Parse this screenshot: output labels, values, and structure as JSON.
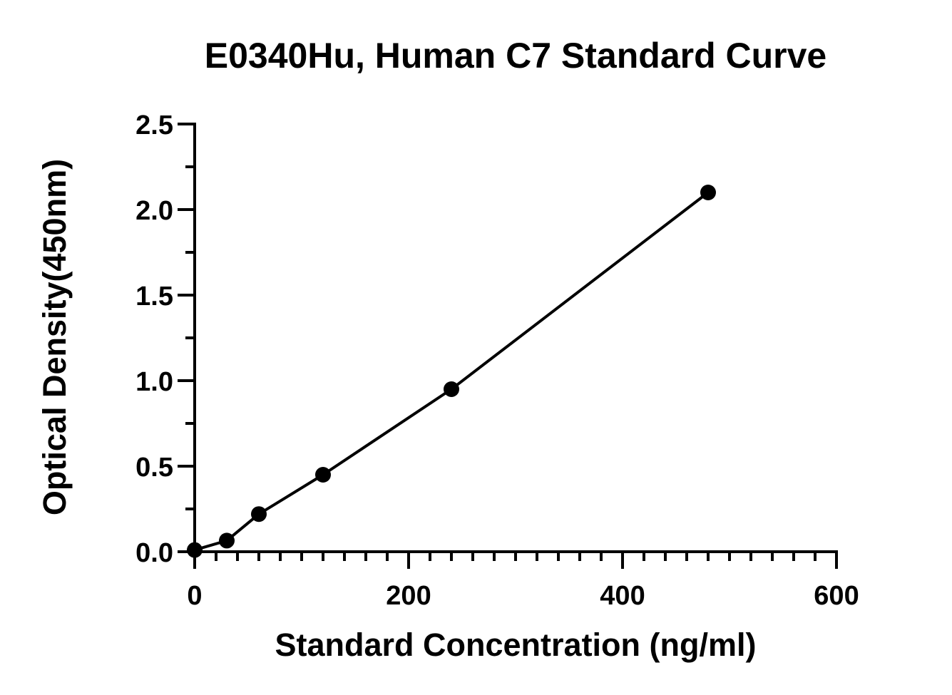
{
  "chart_data": {
    "type": "scatter",
    "title": "E0340Hu, Human C7 Standard Curve",
    "xlabel": "Standard Concentration (ng/ml)",
    "ylabel": "Optical Density(450nm)",
    "xlim": [
      0,
      600
    ],
    "ylim": [
      0,
      2.5
    ],
    "xticks": [
      "0",
      "200",
      "400",
      "600"
    ],
    "yticks": [
      "0.0",
      "0.5",
      "1.0",
      "1.5",
      "2.0",
      "2.5"
    ],
    "grid": false,
    "fit_line": true,
    "series": [
      {
        "x": [
          0,
          30,
          60,
          120,
          240,
          480
        ],
        "y": [
          0.01,
          0.065,
          0.22,
          0.45,
          0.95,
          2.1
        ]
      }
    ],
    "colors": {
      "axis": "#000000",
      "marker": "#000000",
      "line": "#000000"
    }
  }
}
